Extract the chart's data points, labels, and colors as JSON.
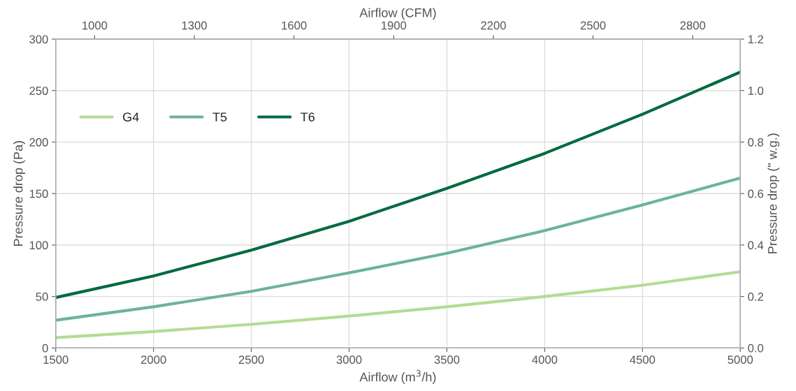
{
  "chart_data": {
    "type": "line",
    "xlabel": "Airflow (m$^{3}$/h)",
    "ylabel": "Pressure drop (Pa)",
    "y2label": "Pressure drop (\" w.g.)",
    "x2label": "Airflow (CFM)",
    "x": [
      1500,
      2000,
      2500,
      3000,
      3500,
      4000,
      4500,
      5000
    ],
    "series": [
      {
        "name": "G4",
        "color": "#b3dc94",
        "values": [
          10,
          16,
          23,
          31,
          40,
          50,
          61,
          74
        ]
      },
      {
        "name": "T5",
        "color": "#6db39a",
        "values": [
          27,
          40,
          55,
          73,
          92,
          114,
          139,
          165
        ]
      },
      {
        "name": "T6",
        "color": "#006b3f",
        "values": [
          49,
          70,
          95,
          123,
          155,
          189,
          227,
          268
        ]
      }
    ],
    "xlim": [
      1500,
      5000
    ],
    "xticks": [
      1500,
      2000,
      2500,
      3000,
      3500,
      4000,
      4500,
      5000
    ],
    "ylim": [
      0,
      300
    ],
    "yticks": [
      0,
      50,
      100,
      150,
      200,
      250,
      300
    ],
    "y2lim": [
      0,
      1.2
    ],
    "y2ticks": [
      {
        "value": 0,
        "label": "0.0"
      },
      {
        "value": 0.2,
        "label": "0.2"
      },
      {
        "value": 0.4,
        "label": "0.4"
      },
      {
        "value": 0.6,
        "label": "0.6"
      },
      {
        "value": 0.8,
        "label": "0.8"
      },
      {
        "value": 1.0,
        "label": "1.0"
      },
      {
        "value": 1.2,
        "label": "1.2"
      }
    ],
    "x2lim": [
      883,
      2943
    ],
    "x2ticks": [
      1000,
      1300,
      1600,
      1900,
      2200,
      2500,
      2800
    ],
    "grid": true,
    "legend": "top left",
    "marker": "none",
    "line_style": "solid"
  }
}
